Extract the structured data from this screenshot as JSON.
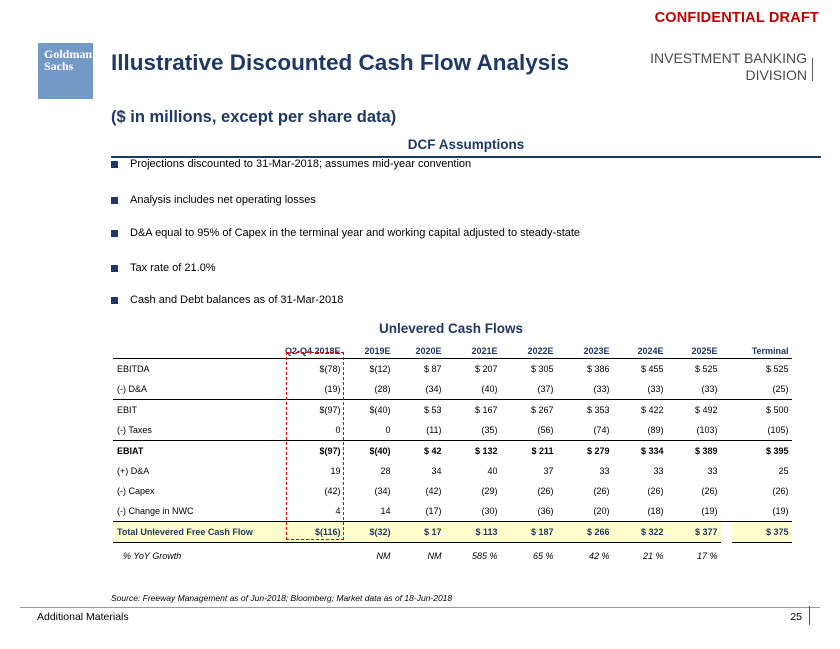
{
  "header": {
    "confidential": "CONFIDENTIAL DRAFT",
    "logo_line1": "Goldman",
    "logo_line2": "Sachs",
    "title": "Illustrative Discounted Cash Flow Analysis",
    "division_line1": "INVESTMENT BANKING",
    "division_line2": "DIVISION",
    "subtitle": "($ in millions, except per share data)"
  },
  "colors": {
    "navy": "#1f3864",
    "red": "#c00000",
    "logo_bg": "#7399c6",
    "highlight": "#ffffcc"
  },
  "dcf": {
    "title": "DCF Assumptions",
    "bullets": [
      "Projections discounted to 31-Mar-2018; assumes mid-year convention",
      "Analysis includes net operating losses",
      "D&A equal to 95% of Capex in the terminal year and working capital adjusted to steady-state",
      "Tax rate of 21.0%",
      "Cash and Debt balances as of 31-Mar-2018"
    ]
  },
  "cashflows": {
    "title": "Unlevered Cash Flows",
    "columns": [
      "Q2-Q4 2018E",
      "2019E",
      "2020E",
      "2021E",
      "2022E",
      "2023E",
      "2024E",
      "2025E",
      "Terminal"
    ],
    "rows": [
      {
        "label": "EBITDA",
        "values": [
          "$(78)",
          "$(12)",
          "$ 87",
          "$ 207",
          "$ 305",
          "$ 386",
          "$ 455",
          "$ 525",
          "$ 525"
        ]
      },
      {
        "label": "(-) D&A",
        "values": [
          "(19)",
          "(28)",
          "(34)",
          "(40)",
          "(37)",
          "(33)",
          "(33)",
          "(33)",
          "(25)"
        ]
      },
      {
        "label": "EBIT",
        "values": [
          "$(97)",
          "$(40)",
          "$ 53",
          "$ 167",
          "$ 267",
          "$ 353",
          "$ 422",
          "$ 492",
          "$ 500"
        ]
      },
      {
        "label": "(-) Taxes",
        "values": [
          "0",
          "0",
          "(11)",
          "(35)",
          "(56)",
          "(74)",
          "(89)",
          "(103)",
          "(105)"
        ]
      },
      {
        "label": "EBIAT",
        "values": [
          "$(97)",
          "$(40)",
          "$ 42",
          "$ 132",
          "$ 211",
          "$ 279",
          "$ 334",
          "$ 389",
          "$ 395"
        ]
      },
      {
        "label": "(+) D&A",
        "values": [
          "19",
          "28",
          "34",
          "40",
          "37",
          "33",
          "33",
          "33",
          "25"
        ]
      },
      {
        "label": "(-) Capex",
        "values": [
          "(42)",
          "(34)",
          "(42)",
          "(29)",
          "(26)",
          "(26)",
          "(26)",
          "(26)",
          "(26)"
        ]
      },
      {
        "label": "(-) Change in NWC",
        "values": [
          "4",
          "14",
          "(17)",
          "(30)",
          "(36)",
          "(20)",
          "(18)",
          "(19)",
          "(19)"
        ]
      },
      {
        "label": "Total Unlevered Free Cash Flow",
        "values": [
          "$(116)",
          "$(32)",
          "$ 17",
          "$ 113",
          "$ 187",
          "$ 266",
          "$ 322",
          "$ 377",
          "$ 375"
        ]
      },
      {
        "label": "% YoY Growth",
        "values": [
          "",
          "NM",
          "NM",
          "585 %",
          "65 %",
          "42 %",
          "21 %",
          "17 %",
          ""
        ]
      }
    ]
  },
  "footer": {
    "source": "Source: Freeway Management as of Jun-2018; Bloomberg; Market data as of 18-Jun-2018",
    "section": "Additional Materials",
    "page": "25"
  }
}
